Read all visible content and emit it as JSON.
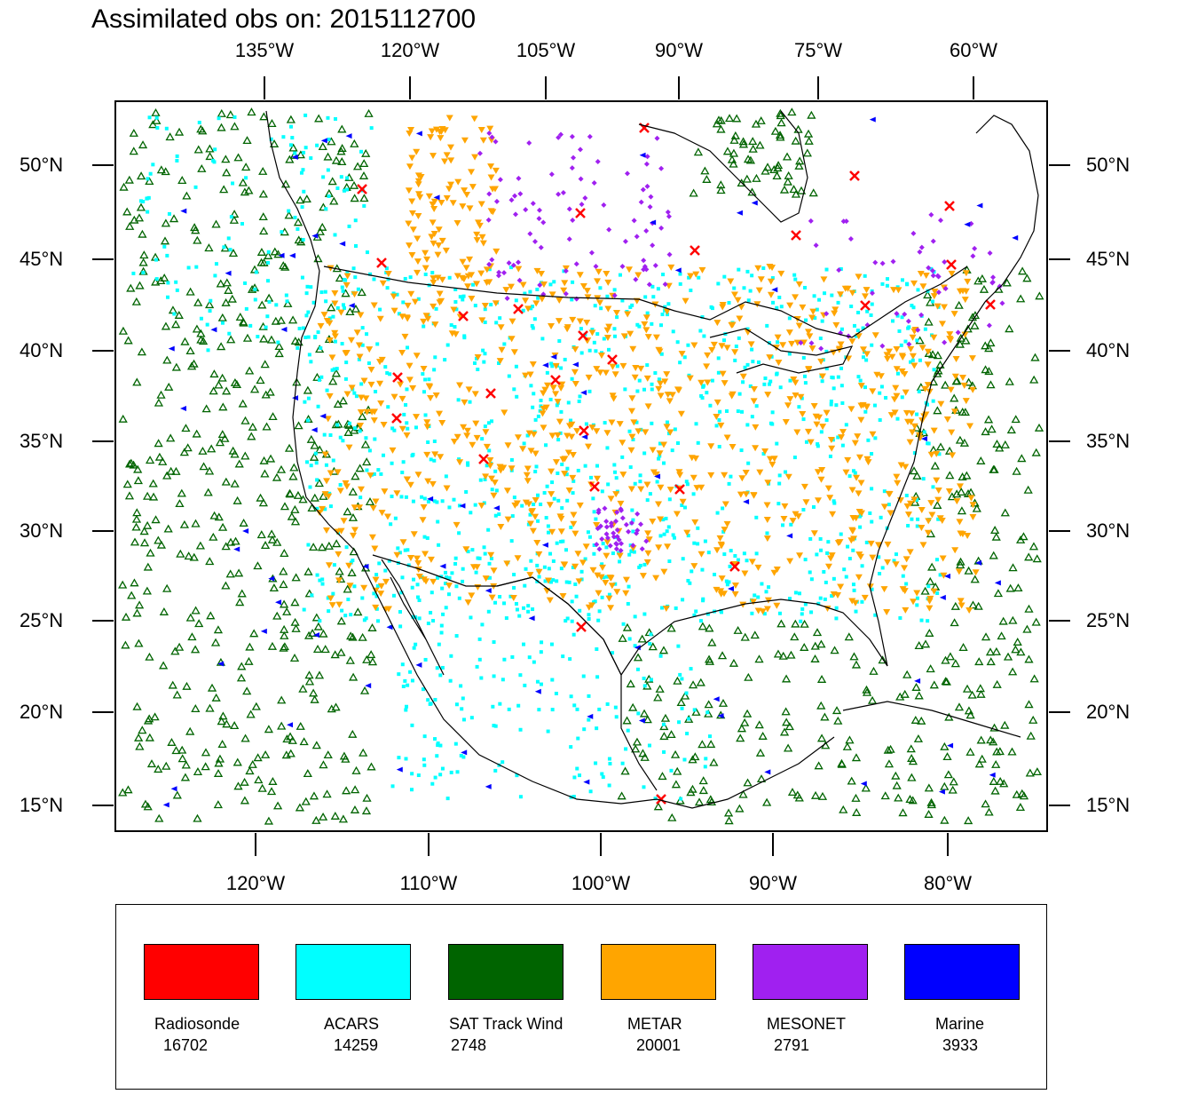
{
  "title": "Assimilated obs on: 2015112700",
  "top_axis_labels": [
    "135°W",
    "120°W",
    "105°W",
    "90°W",
    "75°W",
    "60°W"
  ],
  "bottom_axis_labels": [
    "120°W",
    "110°W",
    "100°W",
    "90°W",
    "80°W"
  ],
  "left_axis_labels": [
    "50°N",
    "45°N",
    "40°N",
    "35°N",
    "30°N",
    "25°N",
    "20°N",
    "15°N"
  ],
  "right_axis_labels": [
    "50°N",
    "45°N",
    "40°N",
    "35°N",
    "30°N",
    "25°N",
    "20°N",
    "15°N"
  ],
  "legend": [
    {
      "name": "Radiosonde",
      "count": "16702",
      "color": "#ff0000",
      "marker": "x"
    },
    {
      "name": "ACARS",
      "count": "14259",
      "color": "#00ffff",
      "marker": "square"
    },
    {
      "name": "SAT Track Wind",
      "count": "2748",
      "color": "#006400",
      "marker": "triangle-up"
    },
    {
      "name": "METAR",
      "count": "20001",
      "color": "#ffa500",
      "marker": "triangle-down"
    },
    {
      "name": "MESONET",
      "count": "2791",
      "color": "#a020f0",
      "marker": "diamond"
    },
    {
      "name": "Marine",
      "count": "3933",
      "color": "#0000ff",
      "marker": "triangle-left"
    }
  ]
}
